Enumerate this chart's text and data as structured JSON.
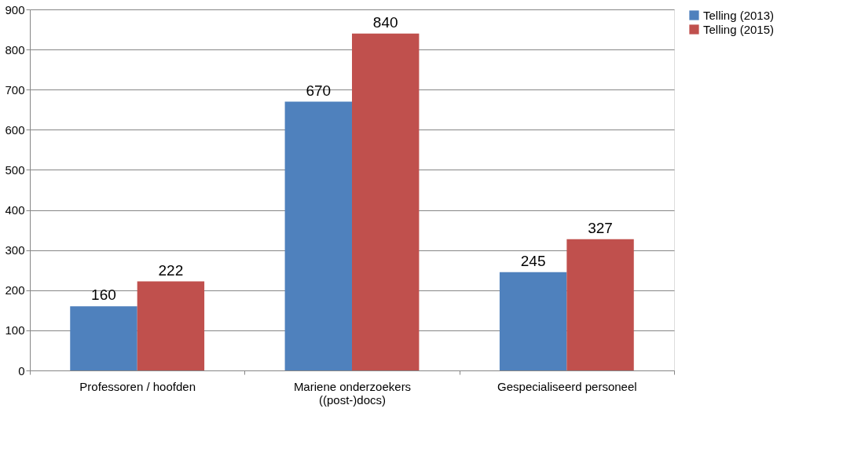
{
  "chart_data": {
    "type": "bar",
    "categories": [
      "Professoren / hoofden",
      "Mariene onderzoekers\n((post-)docs)",
      "Gespecialiseerd personeel"
    ],
    "series": [
      {
        "name": "Telling (2013)",
        "color": "#4f81bd",
        "values": [
          160,
          670,
          245
        ]
      },
      {
        "name": "Telling (2015)",
        "color": "#c0504d",
        "values": [
          222,
          840,
          327
        ]
      }
    ],
    "ylim": [
      0,
      900
    ],
    "yticks": [
      0,
      100,
      200,
      300,
      400,
      500,
      600,
      700,
      800,
      900
    ],
    "grid": "y",
    "legend": "right",
    "data_labels": true
  }
}
